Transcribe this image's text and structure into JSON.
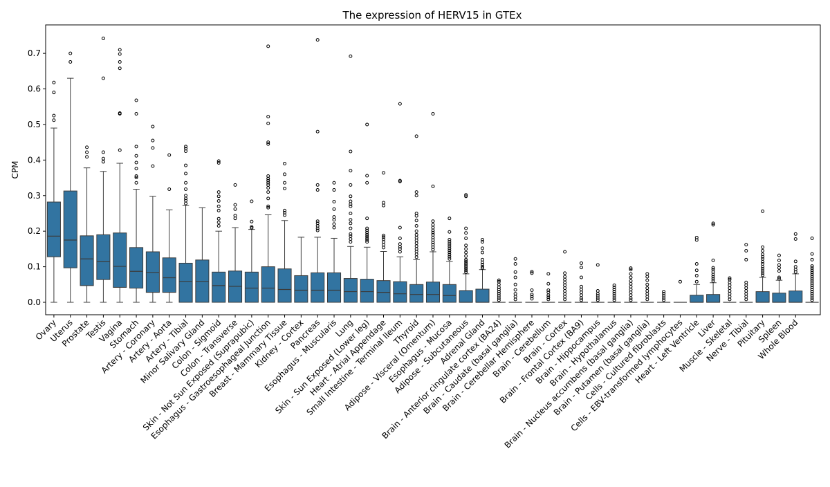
{
  "chart_data": {
    "type": "box",
    "title": "The expression of HERV15 in GTEx",
    "xlabel": "",
    "ylabel": "CPM",
    "ylim": [
      -0.035,
      0.78
    ],
    "yticks": [
      0.0,
      0.1,
      0.2,
      0.3,
      0.4,
      0.5,
      0.6,
      0.7
    ],
    "ytick_labels": [
      "0.0",
      "0.1",
      "0.2",
      "0.3",
      "0.4",
      "0.5",
      "0.6",
      "0.7"
    ],
    "grid": false,
    "legend": "none",
    "box_color": "#3274a1",
    "edge_color": "#3b3b3b",
    "boxes": [
      {
        "category": "Ovary",
        "whislo": 0.0,
        "q1": 0.128,
        "med": 0.186,
        "q3": 0.282,
        "whishi": 0.49,
        "fliers": [
          0.512,
          0.525,
          0.59,
          0.618
        ]
      },
      {
        "category": "Uterus",
        "whislo": 0.0,
        "q1": 0.097,
        "med": 0.175,
        "q3": 0.313,
        "whishi": 0.63,
        "fliers": [
          0.676,
          0.7
        ]
      },
      {
        "category": "Prostate",
        "whislo": 0.0,
        "q1": 0.047,
        "med": 0.122,
        "q3": 0.187,
        "whishi": 0.378,
        "fliers": [
          0.409,
          0.422,
          0.436
        ]
      },
      {
        "category": "Testis",
        "whislo": 0.0,
        "q1": 0.064,
        "med": 0.114,
        "q3": 0.19,
        "whishi": 0.368,
        "fliers": [
          0.395,
          0.404,
          0.422,
          0.63,
          0.742
        ]
      },
      {
        "category": "Vagina",
        "whislo": 0.0,
        "q1": 0.042,
        "med": 0.101,
        "q3": 0.195,
        "whishi": 0.391,
        "fliers": [
          0.428,
          0.53,
          0.532,
          0.658,
          0.676,
          0.698,
          0.71
        ]
      },
      {
        "category": "Stomach",
        "whislo": 0.0,
        "q1": 0.04,
        "med": 0.087,
        "q3": 0.154,
        "whishi": 0.318,
        "fliers": [
          0.336,
          0.351,
          0.355,
          0.376,
          0.393,
          0.412,
          0.438,
          0.53,
          0.568
        ]
      },
      {
        "category": "Artery - Coronary",
        "whislo": 0.0,
        "q1": 0.028,
        "med": 0.084,
        "q3": 0.142,
        "whishi": 0.298,
        "fliers": [
          0.383,
          0.434,
          0.455,
          0.494
        ]
      },
      {
        "category": "Artery - Aorta",
        "whislo": 0.0,
        "q1": 0.028,
        "med": 0.069,
        "q3": 0.125,
        "whishi": 0.26,
        "fliers": [
          0.318,
          0.414
        ]
      },
      {
        "category": "Artery - Tibial",
        "whislo": 0.0,
        "q1": 0.0,
        "med": 0.059,
        "q3": 0.11,
        "whishi": 0.272,
        "fliers": [
          0.278,
          0.286,
          0.292,
          0.3,
          0.318,
          0.336,
          0.362,
          0.385,
          0.425,
          0.432,
          0.438
        ]
      },
      {
        "category": "Minor Salivary Gland",
        "whislo": 0.0,
        "q1": 0.0,
        "med": 0.059,
        "q3": 0.119,
        "whishi": 0.266,
        "fliers": []
      },
      {
        "category": "Colon - Sigmoid",
        "whislo": 0.0,
        "q1": 0.0,
        "med": 0.047,
        "q3": 0.085,
        "whishi": 0.2,
        "fliers": [
          0.215,
          0.225,
          0.235,
          0.258,
          0.27,
          0.285,
          0.298,
          0.31,
          0.392,
          0.397
        ]
      },
      {
        "category": "Colon - Transverse",
        "whislo": 0.0,
        "q1": 0.0,
        "med": 0.045,
        "q3": 0.088,
        "whishi": 0.21,
        "fliers": [
          0.236,
          0.244,
          0.262,
          0.274,
          0.33
        ]
      },
      {
        "category": "Skin - Not Sun Exposed (Suprapubic)",
        "whislo": 0.0,
        "q1": 0.0,
        "med": 0.04,
        "q3": 0.085,
        "whishi": 0.205,
        "fliers": [
          0.209,
          0.212,
          0.227,
          0.284
        ]
      },
      {
        "category": "Esophagus - Gastroesophageal Junction",
        "whislo": 0.0,
        "q1": 0.0,
        "med": 0.04,
        "q3": 0.1,
        "whishi": 0.246,
        "fliers": [
          0.266,
          0.27,
          0.292,
          0.31,
          0.322,
          0.33,
          0.336,
          0.342,
          0.348,
          0.355,
          0.445,
          0.45,
          0.503,
          0.522,
          0.72
        ]
      },
      {
        "category": "Breast - Mammary Tissue",
        "whislo": 0.0,
        "q1": 0.0,
        "med": 0.036,
        "q3": 0.094,
        "whishi": 0.23,
        "fliers": [
          0.245,
          0.252,
          0.258,
          0.32,
          0.336,
          0.36,
          0.39
        ]
      },
      {
        "category": "Kidney - Cortex",
        "whislo": 0.0,
        "q1": 0.0,
        "med": 0.034,
        "q3": 0.075,
        "whishi": 0.183,
        "fliers": []
      },
      {
        "category": "Pancreas",
        "whislo": 0.0,
        "q1": 0.0,
        "med": 0.034,
        "q3": 0.083,
        "whishi": 0.183,
        "fliers": [
          0.202,
          0.208,
          0.215,
          0.222,
          0.228,
          0.316,
          0.33,
          0.48,
          0.738
        ]
      },
      {
        "category": "Esophagus - Muscularis",
        "whislo": 0.0,
        "q1": 0.0,
        "med": 0.034,
        "q3": 0.083,
        "whishi": 0.18,
        "fliers": [
          0.21,
          0.22,
          0.232,
          0.24,
          0.262,
          0.283,
          0.316,
          0.336
        ]
      },
      {
        "category": "Lung",
        "whislo": 0.0,
        "q1": 0.0,
        "med": 0.03,
        "q3": 0.067,
        "whishi": 0.157,
        "fliers": [
          0.17,
          0.178,
          0.186,
          0.192,
          0.208,
          0.222,
          0.232,
          0.25,
          0.27,
          0.276,
          0.284,
          0.298,
          0.33,
          0.37,
          0.424,
          0.692
        ]
      },
      {
        "category": "Skin - Sun Exposed (Lower leg)",
        "whislo": 0.0,
        "q1": 0.0,
        "med": 0.03,
        "q3": 0.065,
        "whishi": 0.155,
        "fliers": [
          0.17,
          0.175,
          0.18,
          0.185,
          0.19,
          0.196,
          0.202,
          0.208,
          0.236,
          0.336,
          0.356,
          0.5
        ]
      },
      {
        "category": "Heart - Atrial Appendage",
        "whislo": 0.0,
        "q1": 0.0,
        "med": 0.028,
        "q3": 0.061,
        "whishi": 0.143,
        "fliers": [
          0.154,
          0.162,
          0.17,
          0.177,
          0.183,
          0.188,
          0.272,
          0.28,
          0.364
        ]
      },
      {
        "category": "Small Intestine - Terminal Ileum",
        "whislo": 0.0,
        "q1": 0.0,
        "med": 0.024,
        "q3": 0.058,
        "whishi": 0.128,
        "fliers": [
          0.142,
          0.15,
          0.156,
          0.164,
          0.18,
          0.21,
          0.34,
          0.342,
          0.558
        ]
      },
      {
        "category": "Thyroid",
        "whislo": 0.0,
        "q1": 0.0,
        "med": 0.022,
        "q3": 0.05,
        "whishi": 0.12,
        "fliers": [
          0.127,
          0.135,
          0.143,
          0.15,
          0.158,
          0.166,
          0.174,
          0.182,
          0.19,
          0.2,
          0.215,
          0.23,
          0.243,
          0.25,
          0.3,
          0.31,
          0.467
        ]
      },
      {
        "category": "Adipose - Visceral (Omentum)",
        "whislo": 0.0,
        "q1": 0.0,
        "med": 0.022,
        "q3": 0.057,
        "whishi": 0.142,
        "fliers": [
          0.148,
          0.155,
          0.162,
          0.168,
          0.175,
          0.182,
          0.19,
          0.196,
          0.202,
          0.21,
          0.218,
          0.228,
          0.326,
          0.53
        ]
      },
      {
        "category": "Esophagus - Mucosa",
        "whislo": 0.0,
        "q1": 0.0,
        "med": 0.019,
        "q3": 0.05,
        "whishi": 0.115,
        "fliers": [
          0.122,
          0.128,
          0.134,
          0.14,
          0.146,
          0.152,
          0.158,
          0.164,
          0.17,
          0.176,
          0.198,
          0.236
        ]
      },
      {
        "category": "Adipose - Subcutaneous",
        "whislo": 0.0,
        "q1": 0.0,
        "med": 0.0,
        "q3": 0.033,
        "whishi": 0.08,
        "fliers": [
          0.085,
          0.09,
          0.095,
          0.1,
          0.105,
          0.11,
          0.115,
          0.12,
          0.13,
          0.14,
          0.15,
          0.16,
          0.18,
          0.195,
          0.208,
          0.298,
          0.302
        ]
      },
      {
        "category": "Adrenal Gland",
        "whislo": 0.0,
        "q1": 0.0,
        "med": 0.0,
        "q3": 0.037,
        "whishi": 0.092,
        "fliers": [
          0.096,
          0.1,
          0.106,
          0.112,
          0.12,
          0.14,
          0.152,
          0.17,
          0.176
        ]
      },
      {
        "category": "Brain - Anterior cingulate cortex (BA24)",
        "whislo": 0.0,
        "q1": 0.0,
        "med": 0.0,
        "q3": 0.0,
        "whishi": 0.0,
        "fliers": [
          0.006,
          0.012,
          0.018,
          0.024,
          0.03,
          0.036,
          0.042,
          0.05,
          0.058,
          0.062
        ]
      },
      {
        "category": "Brain - Caudate (basal ganglia)",
        "whislo": 0.0,
        "q1": 0.0,
        "med": 0.0,
        "q3": 0.0,
        "whishi": 0.0,
        "fliers": [
          0.008,
          0.016,
          0.024,
          0.035,
          0.05,
          0.07,
          0.085,
          0.108,
          0.122
        ]
      },
      {
        "category": "Brain - Cerebellar Hemisphere",
        "whislo": 0.0,
        "q1": 0.0,
        "med": 0.0,
        "q3": 0.0,
        "whishi": 0.0,
        "fliers": [
          0.01,
          0.016,
          0.022,
          0.034,
          0.082,
          0.086
        ]
      },
      {
        "category": "Brain - Cerebellum",
        "whislo": 0.0,
        "q1": 0.0,
        "med": 0.0,
        "q3": 0.0,
        "whishi": 0.0,
        "fliers": [
          0.008,
          0.014,
          0.02,
          0.028,
          0.034,
          0.052,
          0.08
        ]
      },
      {
        "category": "Brain - Cortex",
        "whislo": 0.0,
        "q1": 0.0,
        "med": 0.0,
        "q3": 0.0,
        "whishi": 0.0,
        "fliers": [
          0.008,
          0.016,
          0.024,
          0.032,
          0.04,
          0.048,
          0.056,
          0.064,
          0.072,
          0.082,
          0.142
        ]
      },
      {
        "category": "Brain - Frontal Cortex (BA9)",
        "whislo": 0.0,
        "q1": 0.0,
        "med": 0.0,
        "q3": 0.0,
        "whishi": 0.0,
        "fliers": [
          0.006,
          0.012,
          0.02,
          0.028,
          0.036,
          0.044,
          0.07,
          0.098,
          0.11
        ]
      },
      {
        "category": "Brain - Hippocampus",
        "whislo": 0.0,
        "q1": 0.0,
        "med": 0.0,
        "q3": 0.0,
        "whishi": 0.0,
        "fliers": [
          0.006,
          0.012,
          0.018,
          0.024,
          0.032,
          0.105
        ]
      },
      {
        "category": "Brain - Hypothalamus",
        "whislo": 0.0,
        "q1": 0.0,
        "med": 0.0,
        "q3": 0.0,
        "whishi": 0.0,
        "fliers": [
          0.006,
          0.012,
          0.018,
          0.024,
          0.03,
          0.036,
          0.042,
          0.048
        ]
      },
      {
        "category": "Brain - Nucleus accumbens (basal ganglia)",
        "whislo": 0.0,
        "q1": 0.0,
        "med": 0.0,
        "q3": 0.0,
        "whishi": 0.0,
        "fliers": [
          0.006,
          0.012,
          0.02,
          0.028,
          0.036,
          0.044,
          0.052,
          0.06,
          0.07,
          0.08,
          0.092,
          0.096
        ]
      },
      {
        "category": "Brain - Putamen (basal ganglia)",
        "whislo": 0.0,
        "q1": 0.0,
        "med": 0.0,
        "q3": 0.0,
        "whishi": 0.0,
        "fliers": [
          0.008,
          0.016,
          0.024,
          0.032,
          0.04,
          0.05,
          0.062,
          0.072,
          0.08
        ]
      },
      {
        "category": "Cells - Cultured fibroblasts",
        "whislo": 0.0,
        "q1": 0.0,
        "med": 0.0,
        "q3": 0.0,
        "whishi": 0.0,
        "fliers": [
          0.006,
          0.012,
          0.018,
          0.024,
          0.03
        ]
      },
      {
        "category": "Cells - EBV-transformed lymphocytes",
        "whislo": 0.0,
        "q1": 0.0,
        "med": 0.0,
        "q3": 0.0,
        "whishi": 0.0,
        "fliers": [
          0.058
        ]
      },
      {
        "category": "Heart - Left Ventricle",
        "whislo": 0.0,
        "q1": 0.0,
        "med": 0.0,
        "q3": 0.02,
        "whishi": 0.05,
        "fliers": [
          0.058,
          0.075,
          0.09,
          0.108,
          0.175,
          0.182
        ]
      },
      {
        "category": "Liver",
        "whislo": 0.0,
        "q1": 0.0,
        "med": 0.0,
        "q3": 0.022,
        "whishi": 0.055,
        "fliers": [
          0.06,
          0.066,
          0.072,
          0.078,
          0.085,
          0.092,
          0.097,
          0.118,
          0.218,
          0.222
        ]
      },
      {
        "category": "Muscle - Skeletal",
        "whislo": 0.0,
        "q1": 0.0,
        "med": 0.0,
        "q3": 0.0,
        "whishi": 0.0,
        "fliers": [
          0.008,
          0.016,
          0.024,
          0.032,
          0.04,
          0.048,
          0.056,
          0.064,
          0.068
        ]
      },
      {
        "category": "Nerve - Tibial",
        "whislo": 0.0,
        "q1": 0.0,
        "med": 0.0,
        "q3": 0.0,
        "whishi": 0.0,
        "fliers": [
          0.008,
          0.016,
          0.024,
          0.032,
          0.04,
          0.048,
          0.056,
          0.12,
          0.145,
          0.162
        ]
      },
      {
        "category": "Pituitary",
        "whislo": 0.0,
        "q1": 0.0,
        "med": 0.0,
        "q3": 0.03,
        "whishi": 0.07,
        "fliers": [
          0.076,
          0.082,
          0.088,
          0.094,
          0.1,
          0.108,
          0.114,
          0.122,
          0.128,
          0.135,
          0.145,
          0.155,
          0.256
        ]
      },
      {
        "category": "Spleen",
        "whislo": 0.0,
        "q1": 0.0,
        "med": 0.0,
        "q3": 0.026,
        "whishi": 0.062,
        "fliers": [
          0.066,
          0.07,
          0.088,
          0.097,
          0.105,
          0.118,
          0.132
        ]
      },
      {
        "category": "Whole Blood",
        "whislo": 0.0,
        "q1": 0.0,
        "med": 0.0,
        "q3": 0.032,
        "whishi": 0.08,
        "fliers": [
          0.085,
          0.092,
          0.1,
          0.115,
          0.178,
          0.192
        ]
      },
      {
        "category": "",
        "whislo": 0.0,
        "q1": 0.0,
        "med": 0.0,
        "q3": 0.0,
        "whishi": 0.0,
        "fliers": [
          0.006,
          0.012,
          0.018,
          0.024,
          0.03,
          0.036,
          0.042,
          0.048,
          0.054,
          0.06,
          0.066,
          0.072,
          0.078,
          0.084,
          0.09,
          0.096,
          0.102,
          0.12,
          0.136,
          0.18
        ]
      }
    ]
  }
}
